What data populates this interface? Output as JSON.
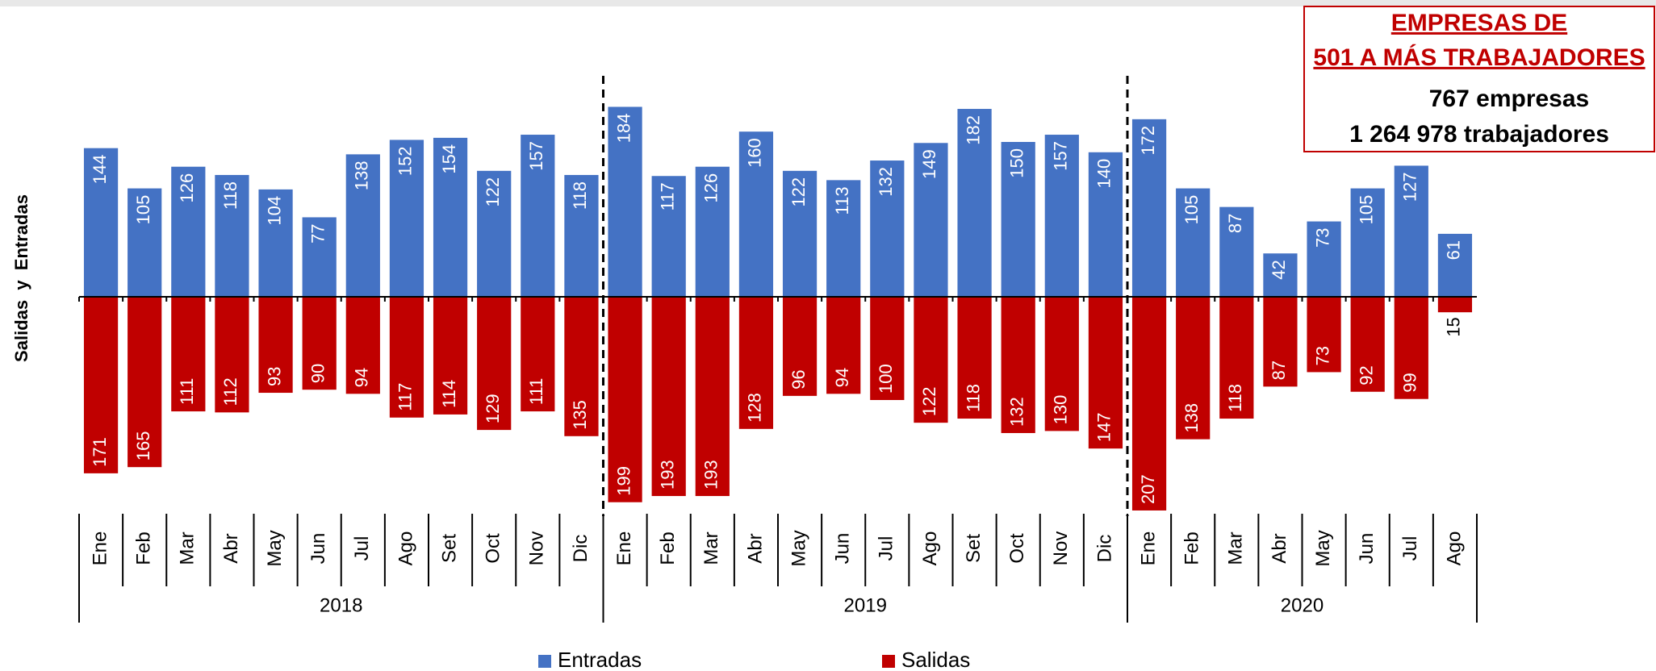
{
  "chart_data": {
    "type": "diverging-bar",
    "y_label": "Salidas  y  Entradas",
    "box": {
      "title_lines": [
        "EMPRESAS DE",
        "501 A MÁS TRABAJADORES"
      ],
      "lines": [
        "767 empresas",
        "1 264 978 trabajadores"
      ]
    },
    "groups": [
      {
        "name": "2018",
        "categories": [
          "Ene",
          "Feb",
          "Mar",
          "Abr",
          "May",
          "Jun",
          "Jul",
          "Ago",
          "Set",
          "Oct",
          "Nov",
          "Dic"
        ]
      },
      {
        "name": "2019",
        "categories": [
          "Ene",
          "Feb",
          "Mar",
          "Abr",
          "May",
          "Jun",
          "Jul",
          "Ago",
          "Set",
          "Oct",
          "Nov",
          "Dic"
        ]
      },
      {
        "name": "2020",
        "categories": [
          "Ene",
          "Feb",
          "Mar",
          "Abr",
          "May",
          "Jun",
          "Jul",
          "Ago"
        ]
      }
    ],
    "series": [
      {
        "name": "Entradas",
        "color": "#4472c4",
        "direction": "up",
        "values": [
          144,
          105,
          126,
          118,
          104,
          77,
          138,
          152,
          154,
          122,
          157,
          118,
          184,
          117,
          126,
          160,
          122,
          113,
          132,
          149,
          182,
          150,
          157,
          140,
          172,
          105,
          87,
          42,
          73,
          105,
          127,
          61
        ]
      },
      {
        "name": "Salidas",
        "color": "#c00000",
        "direction": "down",
        "values": [
          171,
          165,
          111,
          112,
          93,
          90,
          94,
          117,
          114,
          129,
          111,
          135,
          199,
          193,
          193,
          128,
          96,
          94,
          100,
          122,
          118,
          132,
          130,
          147,
          207,
          138,
          118,
          87,
          73,
          92,
          99,
          15
        ]
      }
    ]
  }
}
